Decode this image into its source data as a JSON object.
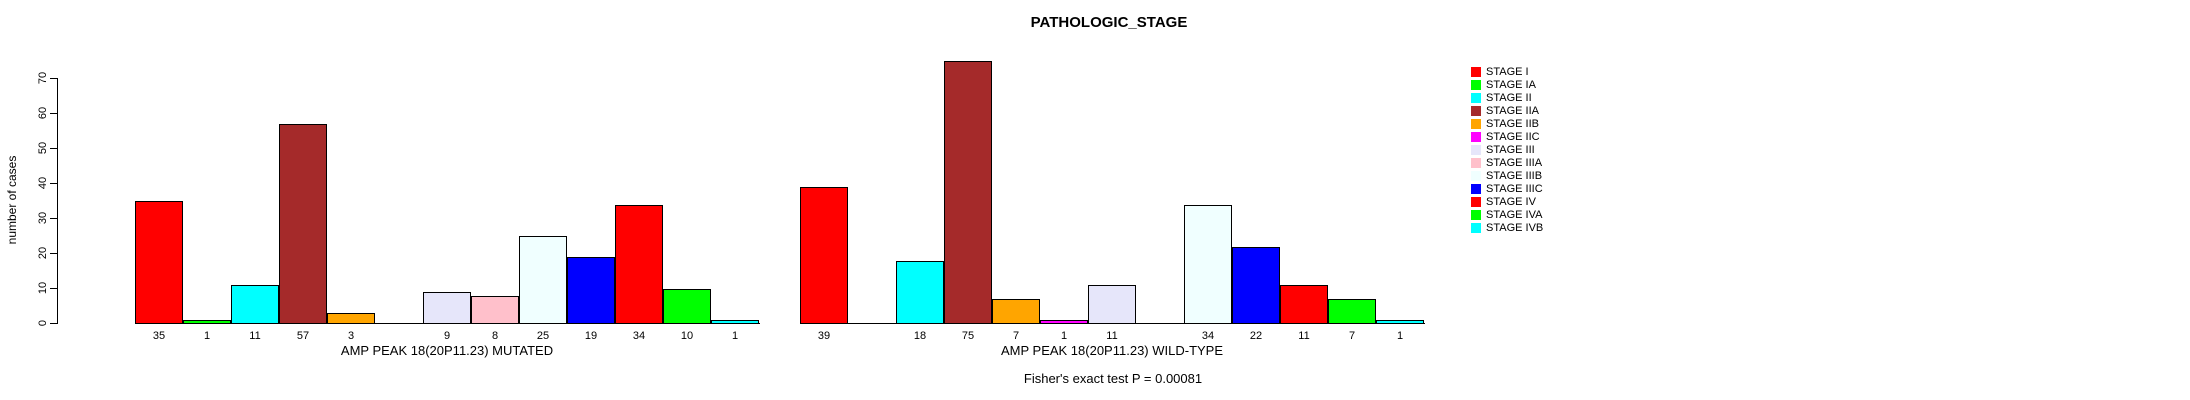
{
  "chart_data": {
    "type": "bar",
    "title": "PATHOLOGIC_STAGE",
    "ylabel": "number of cases",
    "ylim": [
      0,
      70
    ],
    "yticks": [
      0,
      10,
      20,
      30,
      40,
      50,
      60,
      70
    ],
    "grid": false,
    "legend_position": "right",
    "categories": [
      "STAGE I",
      "STAGE IA",
      "STAGE II",
      "STAGE IIA",
      "STAGE IIB",
      "STAGE IIC",
      "STAGE III",
      "STAGE IIIA",
      "STAGE IIIB",
      "STAGE IIIC",
      "STAGE IV",
      "STAGE IVA",
      "STAGE IVB"
    ],
    "colors": [
      "#FF0000",
      "#00FF00",
      "#00FFFF",
      "#A52A2A",
      "#FFA500",
      "#FF00FF",
      "#E6E6FA",
      "#FFC0CB",
      "#F0FFFF",
      "#0000FF",
      "#FF0000",
      "#00FF00",
      "#00FFFF"
    ],
    "series": [
      {
        "name": "AMP PEAK 18(20P11.23) MUTATED",
        "values": [
          35,
          1,
          11,
          57,
          3,
          0,
          9,
          8,
          25,
          19,
          34,
          10,
          1
        ]
      },
      {
        "name": "AMP PEAK 18(20P11.23) WILD-TYPE",
        "values": [
          39,
          0,
          18,
          75,
          7,
          1,
          11,
          0,
          34,
          22,
          11,
          7,
          1
        ]
      }
    ],
    "value_label_rule": "labels shown under each bar only when value > 0",
    "annotation": "Fisher's exact test P = 0.00081"
  }
}
